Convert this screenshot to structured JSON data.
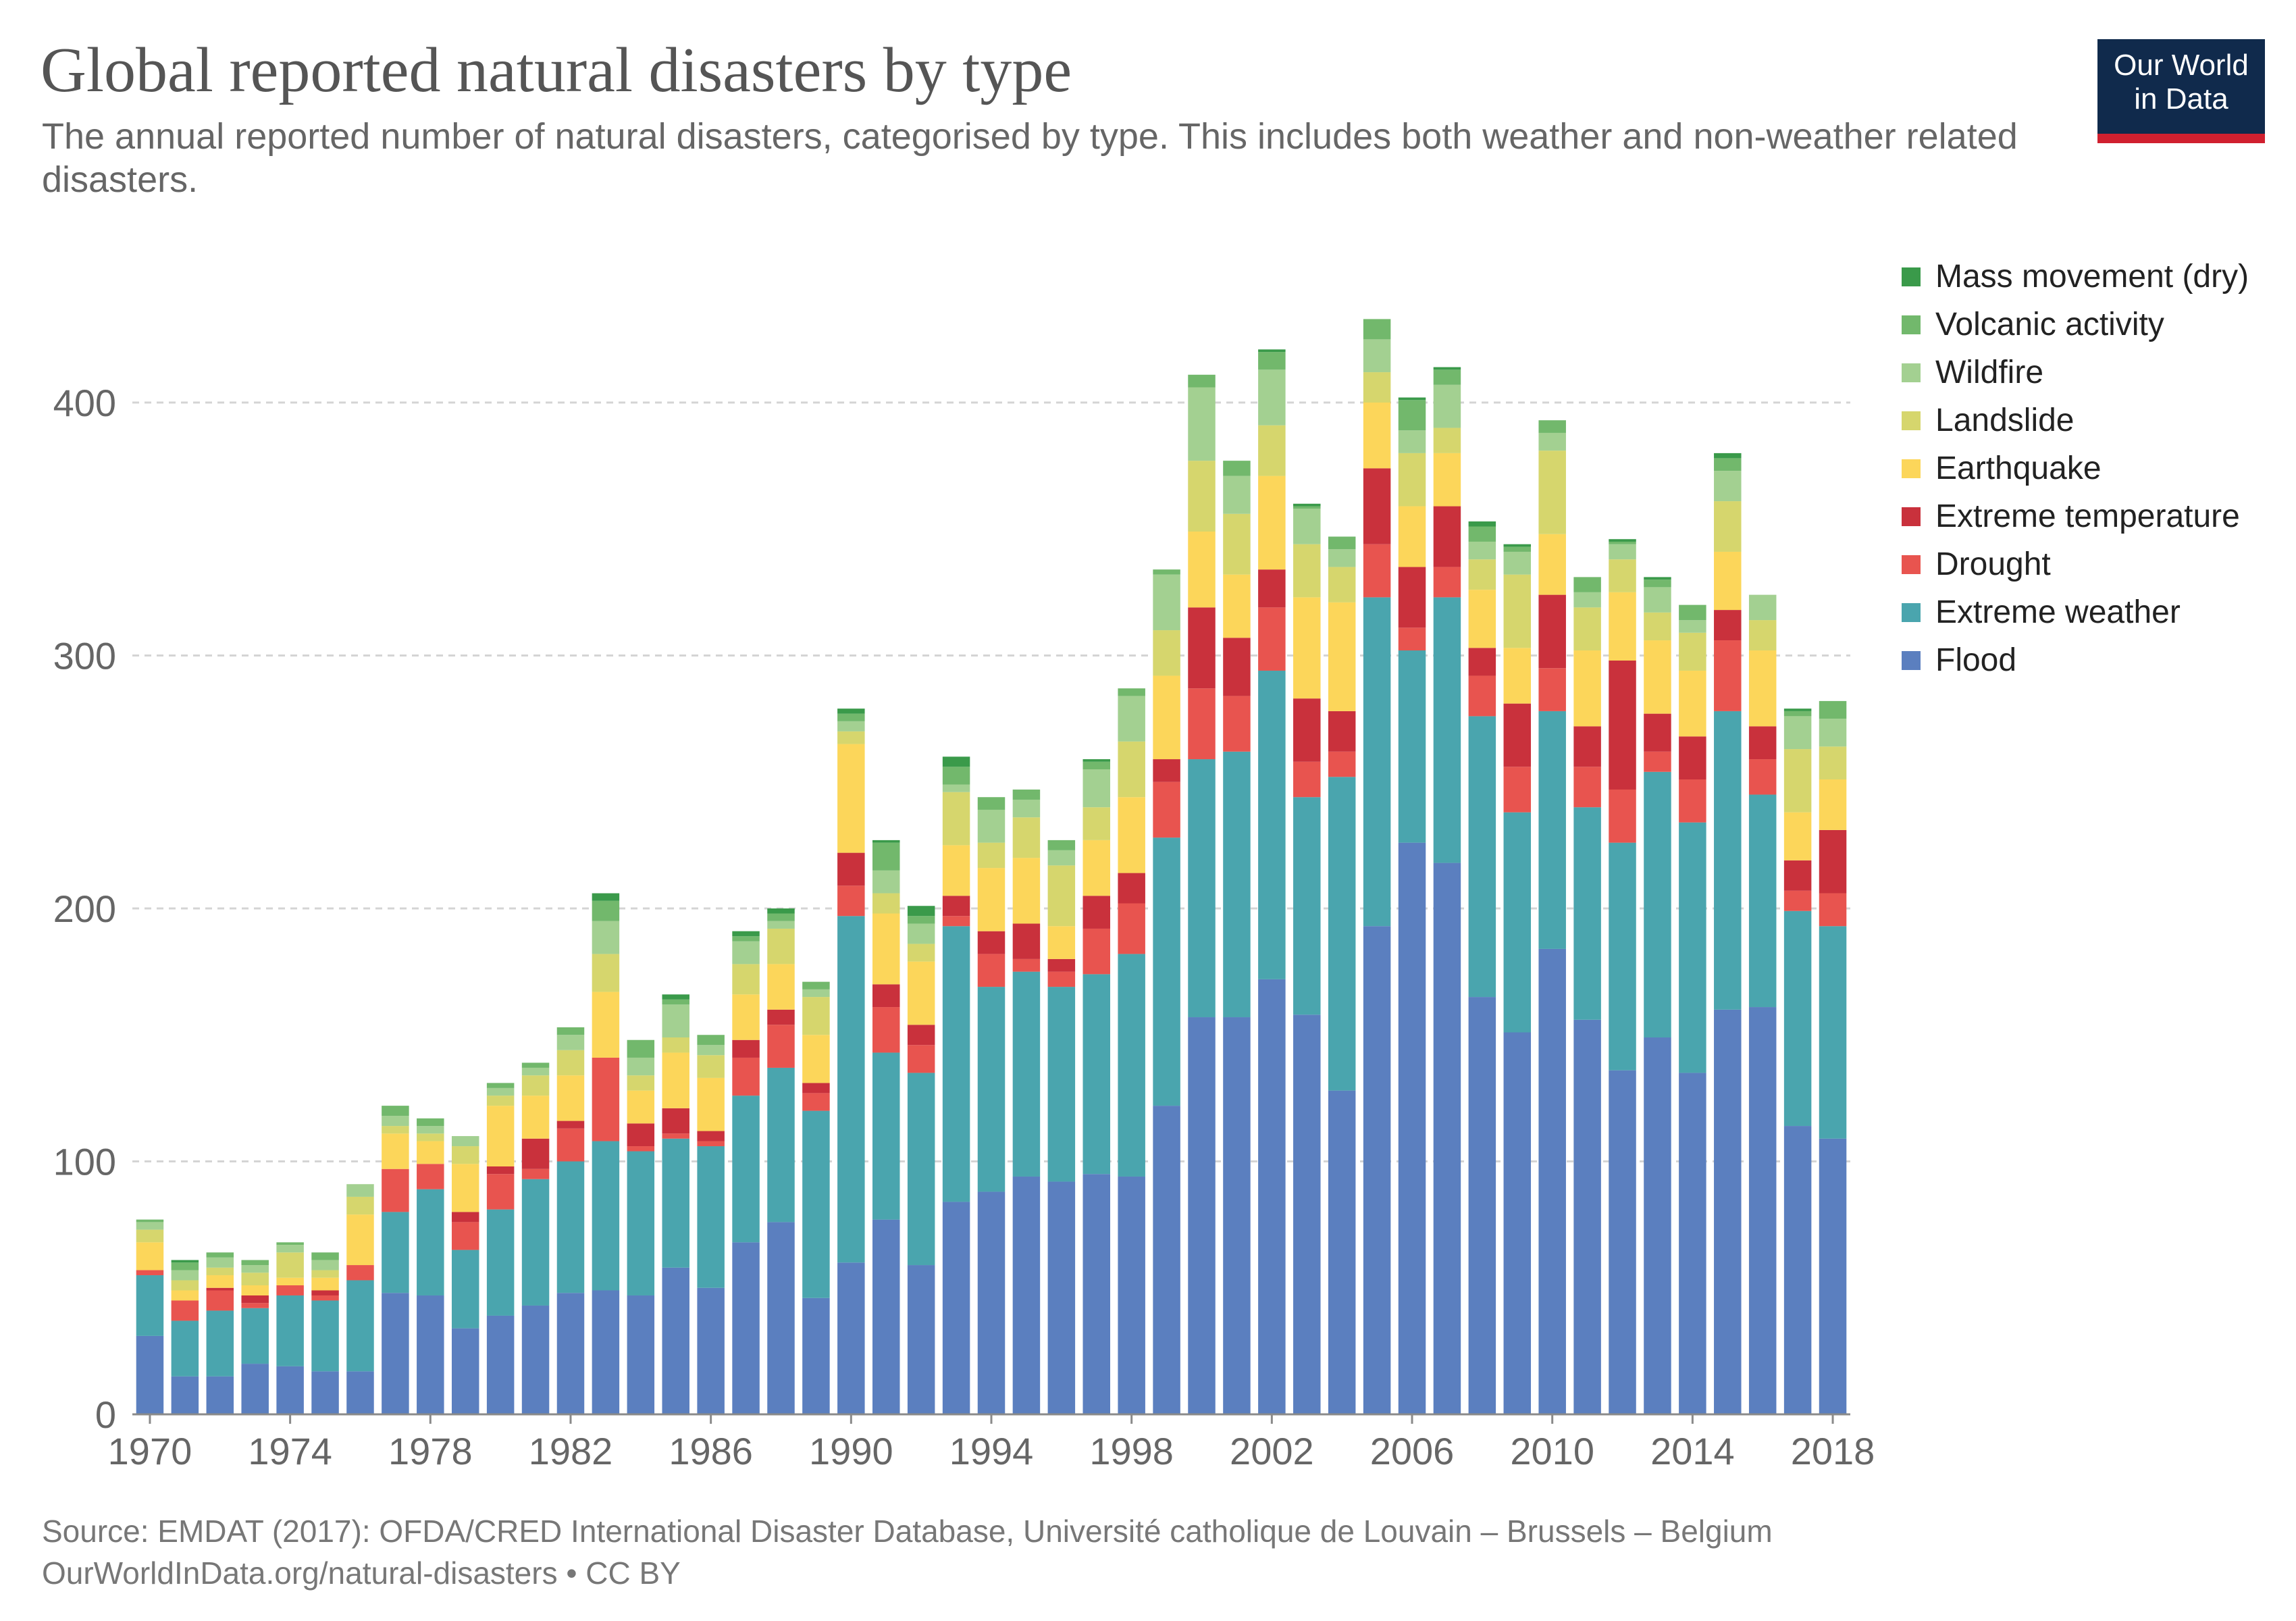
{
  "title": "Global reported natural disasters by type",
  "subtitle": "The annual reported number of natural disasters, categorised by type. This includes both weather and non-weather related disasters.",
  "logo": {
    "line1": "Our World",
    "line2": "in Data"
  },
  "footer": {
    "source": "Source: EMDAT (2017): OFDA/CRED International Disaster Database, Université catholique de Louvain – Brussels – Belgium",
    "url": "OurWorldInData.org/natural-disasters • CC BY"
  },
  "chart_data": {
    "type": "bar",
    "stacked": true,
    "xlabel": "",
    "ylabel": "",
    "ylim": [
      0,
      430
    ],
    "y_ticks": [
      0,
      100,
      200,
      300,
      400
    ],
    "x_tick_labels": [
      "1970",
      "1974",
      "1978",
      "1982",
      "1986",
      "1990",
      "1994",
      "1998",
      "2002",
      "2006",
      "2010",
      "2014",
      "2018"
    ],
    "grid": "horizontal dashed",
    "legend_position": "right",
    "categories": [
      "1970",
      "1971",
      "1972",
      "1973",
      "1974",
      "1975",
      "1976",
      "1977",
      "1978",
      "1979",
      "1980",
      "1981",
      "1982",
      "1983",
      "1984",
      "1985",
      "1986",
      "1987",
      "1988",
      "1989",
      "1990",
      "1991",
      "1992",
      "1993",
      "1994",
      "1995",
      "1996",
      "1997",
      "1998",
      "1999",
      "2000",
      "2001",
      "2002",
      "2003",
      "2004",
      "2005",
      "2006",
      "2007",
      "2008",
      "2009",
      "2010",
      "2011",
      "2012",
      "2013",
      "2014",
      "2015",
      "2016",
      "2017",
      "2018"
    ],
    "series": [
      {
        "name": "Flood",
        "color": "#5b7fbf",
        "values": [
          31,
          15,
          15,
          20,
          19,
          17,
          17,
          48,
          47,
          34,
          39,
          43,
          48,
          49,
          47,
          58,
          50,
          68,
          76,
          46,
          60,
          77,
          59,
          84,
          88,
          94,
          92,
          95,
          94,
          122,
          157,
          157,
          172,
          158,
          128,
          193,
          226,
          218,
          165,
          151,
          184,
          156,
          136,
          149,
          135,
          160,
          161,
          114,
          109
        ]
      },
      {
        "name": "Extreme weather",
        "color": "#4aa5ae",
        "values": [
          24,
          22,
          26,
          22,
          28,
          28,
          36,
          32,
          42,
          31,
          42,
          50,
          52,
          59,
          57,
          51,
          56,
          58,
          61,
          74,
          137,
          66,
          76,
          109,
          81,
          81,
          77,
          79,
          88,
          106,
          102,
          105,
          122,
          86,
          124,
          130,
          76,
          105,
          111,
          87,
          94,
          84,
          90,
          105,
          99,
          118,
          84,
          85,
          84
        ]
      },
      {
        "name": "Drought",
        "color": "#e8544f",
        "values": [
          2,
          8,
          8,
          2,
          4,
          2,
          6,
          17,
          10,
          11,
          14,
          4,
          13,
          33,
          2,
          2,
          2,
          15,
          17,
          7,
          12,
          18,
          11,
          4,
          13,
          5,
          6,
          18,
          20,
          22,
          28,
          22,
          25,
          14,
          10,
          21,
          9,
          12,
          16,
          18,
          17,
          16,
          21,
          8,
          17,
          28,
          14,
          8,
          13
        ]
      },
      {
        "name": "Extreme temperature",
        "color": "#c9313c",
        "values": [
          0,
          0,
          1,
          3,
          0,
          2,
          0,
          0,
          0,
          4,
          3,
          12,
          3,
          0,
          9,
          10,
          4,
          7,
          6,
          4,
          13,
          9,
          8,
          8,
          9,
          14,
          5,
          13,
          12,
          9,
          32,
          23,
          15,
          25,
          16,
          30,
          24,
          24,
          11,
          25,
          29,
          16,
          51,
          15,
          17,
          12,
          13,
          12,
          25
        ]
      },
      {
        "name": "Earthquake",
        "color": "#fcd65a",
        "values": [
          11,
          4,
          5,
          4,
          3,
          5,
          20,
          14,
          9,
          19,
          24,
          17,
          18,
          26,
          13,
          22,
          21,
          18,
          18,
          19,
          43,
          28,
          25,
          20,
          25,
          26,
          13,
          22,
          30,
          33,
          30,
          25,
          37,
          40,
          43,
          26,
          24,
          21,
          23,
          22,
          24,
          30,
          27,
          29,
          26,
          23,
          30,
          19,
          20
        ]
      },
      {
        "name": "Landslide",
        "color": "#d6d66d",
        "values": [
          5,
          4,
          3,
          5,
          10,
          3,
          7,
          3,
          3,
          7,
          4,
          8,
          10,
          15,
          6,
          6,
          9,
          12,
          14,
          15,
          5,
          8,
          7,
          21,
          10,
          16,
          24,
          13,
          22,
          18,
          28,
          24,
          20,
          21,
          14,
          12,
          21,
          10,
          12,
          29,
          33,
          17,
          13,
          11,
          15,
          20,
          12,
          25,
          13
        ]
      },
      {
        "name": "Wildfire",
        "color": "#a3d091",
        "values": [
          3,
          4,
          4,
          3,
          3,
          4,
          5,
          4,
          3,
          4,
          3,
          3,
          6,
          13,
          7,
          13,
          4,
          9,
          3,
          3,
          4,
          9,
          8,
          3,
          13,
          7,
          6,
          15,
          18,
          22,
          29,
          15,
          22,
          14,
          7,
          13,
          9,
          17,
          7,
          9,
          7,
          6,
          6,
          10,
          5,
          12,
          10,
          13,
          11
        ]
      },
      {
        "name": "Volcanic activity",
        "color": "#72b86c",
        "values": [
          1,
          3,
          2,
          2,
          1,
          3,
          0,
          4,
          3,
          0,
          2,
          2,
          3,
          8,
          7,
          2,
          4,
          2,
          3,
          3,
          3,
          11,
          3,
          7,
          5,
          4,
          4,
          3,
          3,
          2,
          5,
          6,
          7,
          1,
          5,
          8,
          12,
          6,
          6,
          2,
          5,
          6,
          1,
          3,
          6,
          5,
          0,
          2,
          7
        ]
      },
      {
        "name": "Mass movement (dry)",
        "color": "#3a9a4a",
        "values": [
          0,
          1,
          0,
          0,
          0,
          0,
          0,
          0,
          0,
          0,
          0,
          0,
          0,
          3,
          0,
          2,
          0,
          2,
          2,
          0,
          2,
          1,
          4,
          4,
          0,
          0,
          0,
          1,
          0,
          0,
          0,
          0,
          1,
          1,
          0,
          0,
          1,
          1,
          2,
          1,
          0,
          0,
          1,
          1,
          0,
          2,
          0,
          1,
          0
        ]
      }
    ]
  }
}
